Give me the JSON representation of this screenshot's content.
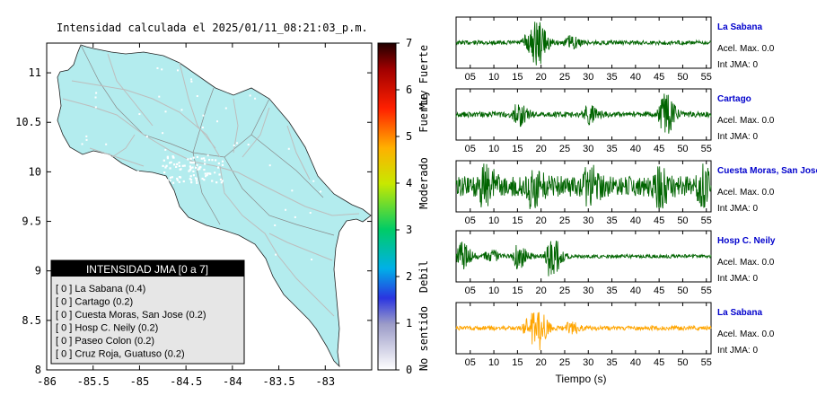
{
  "chart_data": [
    {
      "type": "map",
      "title": "Intensidad calculada el 2025/01/11_08:21:03_p.m.",
      "x_ticks": [
        "-86",
        "-85.5",
        "-85",
        "-84.5",
        "-84",
        "-83.5",
        "-83"
      ],
      "y_ticks": [
        "11",
        "10.5",
        "10",
        "9.5",
        "9",
        "8.5",
        "8"
      ],
      "xlim": [
        -86,
        -82.5
      ],
      "ylim": [
        8,
        11.3
      ],
      "land_color": "#b3ecee",
      "legend": {
        "title": "INTENSIDAD JMA [0 a 7]",
        "placement": "bottom-left",
        "items": [
          "[ 0 ]  La Sabana (0.4)",
          "[ 0 ]  Cartago (0.2)",
          "[ 0 ]  Cuesta Moras, San Jose (0.2)",
          "[ 0 ]  Hosp C. Neily (0.2)",
          "[ 0 ]  Paseo Colon (0.2)",
          "[ 0 ]  Cruz Roja, Guatuso (0.2)"
        ]
      },
      "colorbar": {
        "range": [
          0,
          7
        ],
        "ticks": [
          "0",
          "1",
          "2",
          "3",
          "4",
          "5",
          "6",
          "7"
        ],
        "labels": [
          "No sentido",
          "Debil",
          "Moderado",
          "Fuerte",
          "Muy Fuerte"
        ]
      }
    },
    {
      "type": "line",
      "xlabel": "Tiempo (s)",
      "xlim": [
        2,
        56
      ],
      "x_ticks": [
        "05",
        "10",
        "15",
        "20",
        "25",
        "30",
        "35",
        "40",
        "45",
        "50",
        "55"
      ],
      "panels": [
        {
          "station": "La Sabana",
          "accel": "Acel. Max. 0.0",
          "int": "Int JMA: 0",
          "color": "#006400",
          "events": [
            [
              19,
              1.0
            ],
            [
              17,
              0.35
            ],
            [
              26,
              0.25
            ]
          ],
          "noise": 0.09
        },
        {
          "station": "Cartago",
          "accel": "Acel. Max. 0.0",
          "int": "Int JMA: 0",
          "color": "#006400",
          "events": [
            [
              15,
              0.5
            ],
            [
              30,
              0.35
            ],
            [
              46,
              1.0
            ]
          ],
          "noise": 0.12
        },
        {
          "station": "Cuesta Moras, San Jose",
          "accel": "Acel. Max. 0.0",
          "int": "Int JMA: 0",
          "color": "#006400",
          "events": [
            [
              8,
              0.9
            ],
            [
              18,
              0.8
            ],
            [
              30,
              0.7
            ],
            [
              45,
              0.7
            ],
            [
              54,
              0.6
            ]
          ],
          "noise": 0.45
        },
        {
          "station": "Hosp C. Neily",
          "accel": "Acel. Max. 0.0",
          "int": "Int JMA: 0",
          "color": "#006400",
          "events": [
            [
              3,
              0.6
            ],
            [
              9,
              0.3
            ],
            [
              15,
              0.5
            ],
            [
              22,
              1.0
            ]
          ],
          "noise": 0.08
        },
        {
          "station": "La Sabana",
          "accel": "Acel. Max. 0.0",
          "int": "Int JMA: 0",
          "color": "#ffa500",
          "events": [
            [
              19,
              1.0
            ],
            [
              17,
              0.35
            ],
            [
              26,
              0.25
            ]
          ],
          "noise": 0.09
        }
      ]
    }
  ]
}
